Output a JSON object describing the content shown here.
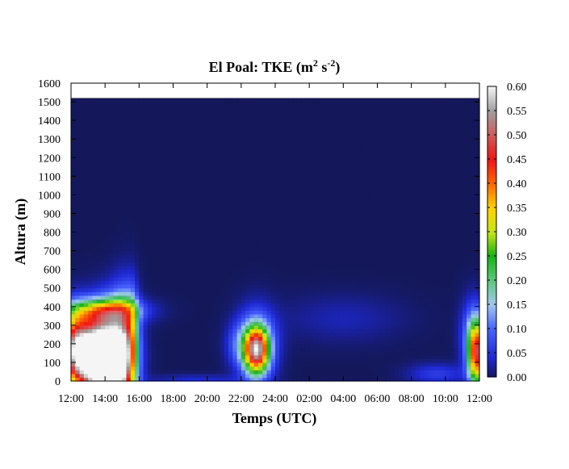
{
  "chart_data": {
    "type": "heatmap",
    "title": "El Poal: TKE (m",
    "title_sup_1": "2",
    "title_mid": " s",
    "title_sup_2": "-2",
    "title_end": ")",
    "xlabel": "Temps (UTC)",
    "ylabel": "Altura (m)",
    "x_ticks": [
      "12:00",
      "14:00",
      "16:00",
      "18:00",
      "20:00",
      "22:00",
      "24:00",
      "02:00",
      "04:00",
      "06:00",
      "08:00",
      "10:00",
      "12:00"
    ],
    "x_range_hours": [
      0,
      24
    ],
    "y_ticks": [
      0,
      100,
      200,
      300,
      400,
      500,
      600,
      700,
      800,
      900,
      1000,
      1100,
      1200,
      1300,
      1400,
      1500,
      1600
    ],
    "ylim": [
      0,
      1600
    ],
    "data_top_m": 1520,
    "colorbar": {
      "min": 0.0,
      "max": 0.6,
      "ticks": [
        "0.00",
        "0.05",
        "0.10",
        "0.15",
        "0.20",
        "0.25",
        "0.30",
        "0.35",
        "0.40",
        "0.45",
        "0.50",
        "0.55",
        "0.60"
      ],
      "colors": [
        {
          "v": 0.0,
          "c": "#14185a"
        },
        {
          "v": 0.04,
          "c": "#1e28d2"
        },
        {
          "v": 0.1,
          "c": "#4664ff"
        },
        {
          "v": 0.15,
          "c": "#a0c8f0"
        },
        {
          "v": 0.2,
          "c": "#5ac87a"
        },
        {
          "v": 0.25,
          "c": "#14b414"
        },
        {
          "v": 0.3,
          "c": "#c8e614"
        },
        {
          "v": 0.35,
          "c": "#ffd200"
        },
        {
          "v": 0.4,
          "c": "#ff6400"
        },
        {
          "v": 0.45,
          "c": "#f01414"
        },
        {
          "v": 0.5,
          "c": "#d25a5a"
        },
        {
          "v": 0.55,
          "c": "#a0a0a0"
        },
        {
          "v": 0.6,
          "c": "#f5f5f5"
        }
      ]
    },
    "background_value": 0.0,
    "blobs": [
      {
        "t": 1.4,
        "z": 130,
        "st": 0.9,
        "sz": 140,
        "peak": 0.62
      },
      {
        "t": 2.4,
        "z": 120,
        "st": 0.8,
        "sz": 170,
        "peak": 0.5
      },
      {
        "t": 0.2,
        "z": 180,
        "st": 0.6,
        "sz": 130,
        "peak": 0.38
      },
      {
        "t": 3.1,
        "z": 150,
        "st": 0.5,
        "sz": 200,
        "peak": 0.3
      },
      {
        "t": 2.0,
        "z": 380,
        "st": 1.5,
        "sz": 45,
        "peak": 0.22
      },
      {
        "t": 3.6,
        "z": 300,
        "st": 0.25,
        "sz": 160,
        "peak": 0.09
      },
      {
        "t": 10.9,
        "z": 170,
        "st": 0.5,
        "sz": 85,
        "peak": 0.46
      },
      {
        "t": 10.9,
        "z": 200,
        "st": 0.8,
        "sz": 130,
        "peak": 0.14
      },
      {
        "t": 23.85,
        "z": 150,
        "st": 0.35,
        "sz": 120,
        "peak": 0.42
      },
      {
        "t": 23.6,
        "z": 250,
        "st": 0.5,
        "sz": 130,
        "peak": 0.1
      },
      {
        "t": 21.5,
        "z": 40,
        "st": 1.2,
        "sz": 40,
        "peak": 0.06
      },
      {
        "t": 16.0,
        "z": 340,
        "st": 2.5,
        "sz": 90,
        "peak": 0.03
      },
      {
        "t": 7.5,
        "z": 10,
        "st": 2.0,
        "sz": 20,
        "peak": 0.04
      },
      {
        "t": 9.8,
        "z": 200,
        "st": 0.5,
        "sz": 80,
        "peak": 0.06
      }
    ]
  }
}
